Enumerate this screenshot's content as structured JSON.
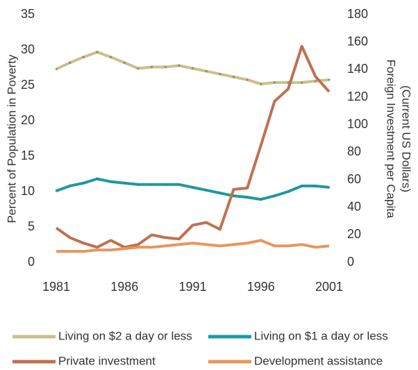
{
  "chart_data": {
    "type": "line",
    "ylabel": "Percent of Population in Poverty",
    "y2label": [
      "Foreign Investment per Capita",
      "(Current US Dollars)"
    ],
    "x": [
      1981,
      1982,
      1983,
      1984,
      1985,
      1986,
      1987,
      1988,
      1989,
      1990,
      1991,
      1992,
      1993,
      1994,
      1995,
      1996,
      1997,
      1998,
      1999,
      2000,
      2001
    ],
    "xlim": [
      1981,
      2001
    ],
    "xticks": [
      1981,
      1986,
      1991,
      1996,
      2001
    ],
    "ylim": [
      0,
      35
    ],
    "yticks": [
      0,
      5,
      10,
      15,
      20,
      25,
      30,
      35
    ],
    "y2lim": [
      0,
      180
    ],
    "y2ticks": [
      0,
      20,
      40,
      60,
      80,
      100,
      120,
      140,
      160,
      180
    ],
    "series": [
      {
        "name": "Living on $2 a day or less",
        "color": "#c9c08c",
        "markers": true,
        "values": [
          27.3,
          28.2,
          29.0,
          29.7,
          29.0,
          28.2,
          27.4,
          27.6,
          27.6,
          27.8,
          27.4,
          27.0,
          26.6,
          26.2,
          25.8,
          25.2,
          25.4,
          25.4,
          25.4,
          25.6,
          25.8
        ]
      },
      {
        "name": "Living on $1 a day or less",
        "color": "#1a9aa8",
        "markers": true,
        "values": [
          10.1,
          10.8,
          11.2,
          11.8,
          11.4,
          11.2,
          11.0,
          11.0,
          11.0,
          11.0,
          10.6,
          10.2,
          9.8,
          9.4,
          9.2,
          8.9,
          9.4,
          10.0,
          10.8,
          10.8,
          10.6
        ]
      },
      {
        "name": "Private investment",
        "color": "#c0704f",
        "axis": "y2",
        "markers": false,
        "values": [
          25,
          18,
          14,
          11,
          16,
          11,
          13,
          20,
          18,
          17,
          27,
          29,
          24,
          53,
          54,
          85,
          117,
          126,
          157,
          135,
          124
        ]
      },
      {
        "name": "Development assistance",
        "color": "#e8965a",
        "axis": "y2",
        "markers": false,
        "values": [
          8,
          8,
          8,
          9,
          9,
          10,
          11,
          11,
          12,
          13,
          14,
          13,
          12,
          13,
          14,
          16,
          12,
          12,
          13,
          11,
          12
        ]
      }
    ]
  }
}
